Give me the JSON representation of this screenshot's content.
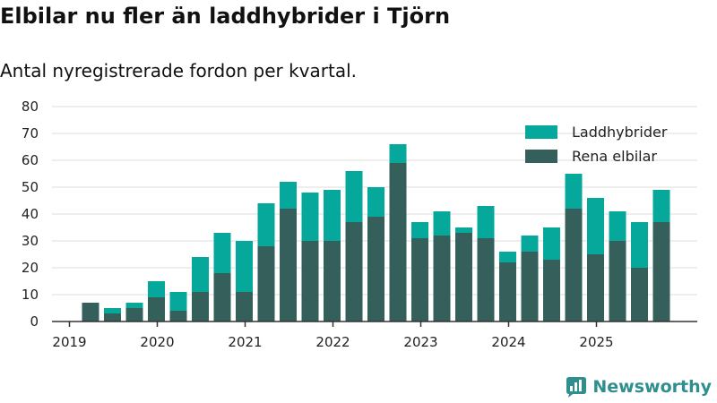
{
  "header": {
    "title": "Elbilar nu fler än laddhybrider i Tjörn",
    "subtitle": "Antal nyregistrerade fordon per kvartal."
  },
  "brand": {
    "name": "Newsworthy",
    "icon": "bar-chart-logo-icon"
  },
  "colors": {
    "elbil": "#345f5b",
    "laddhybrid": "#05a89b",
    "grid": "#dddddd",
    "axis": "#333333",
    "brand": "#2f8e8e"
  },
  "chart_data": {
    "type": "bar",
    "stacked": true,
    "xlabel": "",
    "ylabel": "",
    "ylim": [
      0,
      80
    ],
    "yticks": [
      0,
      10,
      20,
      30,
      40,
      50,
      60,
      70,
      80
    ],
    "xticks": [
      "2019",
      "2020",
      "2021",
      "2022",
      "2023",
      "2024",
      "2025"
    ],
    "legend_position": "top-right",
    "categories": [
      "2019 Q2",
      "2019 Q3",
      "2019 Q4",
      "2020 Q1",
      "2020 Q2",
      "2020 Q3",
      "2020 Q4",
      "2021 Q1",
      "2021 Q2",
      "2021 Q3",
      "2021 Q4",
      "2022 Q1",
      "2022 Q2",
      "2022 Q3",
      "2022 Q4",
      "2023 Q1",
      "2023 Q2",
      "2023 Q3",
      "2023 Q4",
      "2024 Q1",
      "2024 Q2",
      "2024 Q3",
      "2024 Q4",
      "2025 Q1",
      "2025 Q2",
      "2025 Q3",
      "2025 Q4"
    ],
    "series": [
      {
        "name": "Rena elbilar",
        "values": [
          7,
          3,
          5,
          9,
          4,
          11,
          18,
          11,
          28,
          42,
          30,
          30,
          37,
          39,
          59,
          31,
          32,
          33,
          31,
          22,
          26,
          23,
          42,
          25,
          30,
          20,
          37
        ]
      },
      {
        "name": "Laddhybrider",
        "values": [
          0,
          2,
          2,
          6,
          7,
          13,
          15,
          19,
          16,
          10,
          18,
          19,
          19,
          11,
          7,
          6,
          9,
          2,
          12,
          4,
          6,
          12,
          13,
          21,
          11,
          17,
          12
        ]
      }
    ]
  }
}
